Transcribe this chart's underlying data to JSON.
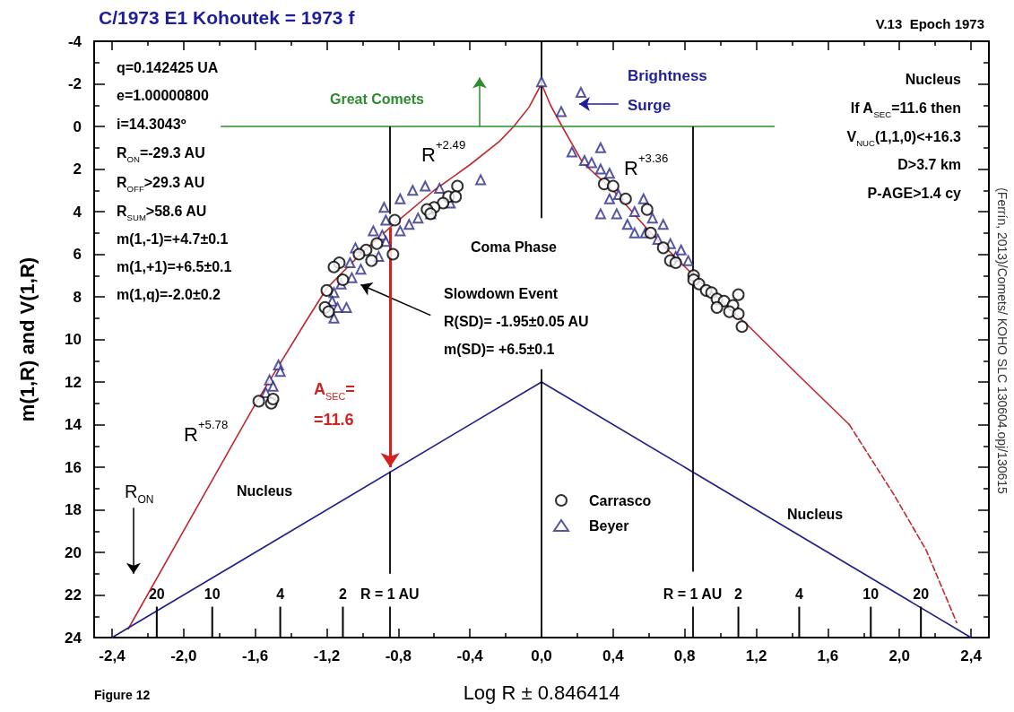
{
  "chart_data": {
    "type": "scatter",
    "title": "C/1973 E1 Kohoutek = 1973 f",
    "subtitle": "V.13  Epoch 1973",
    "xlabel": "Log R ± 0.846414",
    "ylabel": "m(1,R) and V(1,R)",
    "xlim": [
      -2.5,
      2.5
    ],
    "ylim": [
      24,
      -4
    ],
    "xticks": [
      {
        "value": -2.4,
        "label": "-2,4"
      },
      {
        "value": -2.0,
        "label": "-2,0"
      },
      {
        "value": -1.6,
        "label": "-1,6"
      },
      {
        "value": -1.2,
        "label": "-1,2"
      },
      {
        "value": -0.8,
        "label": "-0,8"
      },
      {
        "value": -0.4,
        "label": "-0,4"
      },
      {
        "value": 0,
        "label": "0,0"
      },
      {
        "value": 0.4,
        "label": "0,4"
      },
      {
        "value": 0.8,
        "label": "0,8"
      },
      {
        "value": 1.2,
        "label": "1,2"
      },
      {
        "value": 1.6,
        "label": "1,6"
      },
      {
        "value": 2.0,
        "label": "2,0"
      },
      {
        "value": 2.4,
        "label": "2,4"
      }
    ],
    "yticks": [
      -4,
      -2,
      0,
      2,
      4,
      6,
      8,
      10,
      12,
      14,
      16,
      18,
      20,
      22,
      24
    ],
    "grid": false,
    "legend": "bottom",
    "series": [
      {
        "name": "Carrasco",
        "marker": "circle",
        "color": "#000000",
        "x": [
          -0.47,
          -0.52,
          -0.55,
          -0.48,
          -0.6,
          -0.64,
          -0.62,
          -0.82,
          -0.83,
          -0.92,
          -0.95,
          -0.98,
          -1.02,
          -1.13,
          -1.16,
          -1.11,
          -1.2,
          -1.21,
          -1.19,
          -1.58,
          -1.51,
          -1.5,
          0.35,
          0.4,
          0.47,
          0.59,
          0.61,
          0.68,
          0.72,
          0.75,
          0.85,
          0.85,
          0.88,
          0.92,
          0.95,
          0.98,
          1.02,
          1.07,
          1.1,
          1.05,
          1.1,
          0.98,
          1.12
        ],
        "values": [
          2.8,
          3.3,
          3.6,
          3.3,
          3.8,
          3.9,
          4.1,
          4.4,
          6.0,
          5.5,
          6.3,
          5.8,
          6.0,
          6.4,
          6.6,
          7.2,
          7.7,
          8.5,
          8.7,
          12.9,
          13.0,
          12.8,
          2.7,
          2.8,
          3.4,
          3.9,
          5.0,
          5.7,
          6.3,
          6.4,
          7.0,
          7.2,
          7.4,
          7.7,
          7.8,
          8.1,
          8.2,
          8.4,
          7.9,
          8.7,
          8.8,
          8.5,
          9.4
        ]
      },
      {
        "name": "Beyer",
        "marker": "triangle",
        "color": "#2a2a8a",
        "x": [
          0,
          0.22,
          0.11,
          0.17,
          0.33,
          0.24,
          0.28,
          0.33,
          0.38,
          0.33,
          0.42,
          0.38,
          0.48,
          0.57,
          0.52,
          0.62,
          0.68,
          0.58,
          0.65,
          0.72,
          0.78,
          0.82,
          0.43,
          0.52,
          0.75,
          -0.34,
          -0.65,
          -0.72,
          -0.79,
          -0.88,
          -0.87,
          -0.94,
          -0.89,
          -0.79,
          -0.74,
          -0.69,
          -0.62,
          -0.57,
          -0.51,
          -1.04,
          -1.07,
          -1.01,
          -1.06,
          -1.12,
          -1.16,
          -1.17,
          -1.14,
          -1.09,
          -1.16,
          -0.91,
          -0.87,
          -1.47,
          -1.46,
          -1.52,
          -1.5,
          -1.54
        ],
        "values": [
          -2.1,
          -1.6,
          -0.7,
          1.2,
          1.0,
          1.6,
          1.7,
          2.0,
          2.2,
          4.1,
          4.1,
          3.4,
          4.6,
          3.4,
          4.0,
          4.3,
          4.6,
          5.0,
          5.3,
          5.5,
          5.8,
          6.3,
          3.2,
          5.0,
          6.1,
          2.5,
          2.8,
          3.0,
          3.4,
          3.8,
          4.4,
          4.9,
          5.1,
          4.9,
          4.6,
          4.3,
          4.1,
          2.9,
          3.6,
          5.7,
          6.4,
          6.7,
          7.1,
          7.4,
          7.8,
          8.2,
          8.5,
          8.5,
          9.0,
          6.1,
          5.4,
          11.2,
          11.5,
          11.9,
          12.2,
          12.5
        ]
      },
      {
        "type": "line",
        "marker": "none",
        "line_style": "solid",
        "color": "#c0282d",
        "x": [
          -2.31,
          -1.9,
          -1.59,
          -1.32,
          -1.2,
          -1.0,
          -0.84,
          -0.6,
          -0.4,
          -0.235,
          -0.155,
          -0.07,
          0,
          0.05,
          0.115,
          0.23,
          0.4,
          0.6,
          0.85,
          1.16,
          1.45,
          1.72
        ],
        "values": [
          23.6,
          17.5,
          12.9,
          9.2,
          7.6,
          5.9,
          4.7,
          3.0,
          1.8,
          0.7,
          0,
          -0.9,
          -2.0,
          -1.0,
          0,
          1.7,
          3.0,
          4.9,
          7.0,
          9.4,
          11.8,
          14.0
        ]
      },
      {
        "type": "line",
        "marker": "none",
        "line_style": "dashed",
        "color": "#c0282d",
        "x": [
          1.72,
          1.97,
          2.15,
          2.32
        ],
        "values": [
          14.0,
          17.3,
          19.9,
          23.3
        ]
      },
      {
        "type": "line",
        "marker": "none",
        "line_style": "solid",
        "color": "#1e1e8c",
        "x": [
          -2.4,
          0,
          2.4
        ],
        "values": [
          24,
          12,
          24
        ]
      },
      {
        "type": "line",
        "marker": "none",
        "line_style": "solid",
        "color": "#2e8b2e",
        "x": [
          -1.79,
          1.3
        ],
        "values": [
          0,
          0
        ]
      }
    ],
    "ref_lines": [
      {
        "axis": "x",
        "value": 0
      },
      {
        "axis": "x",
        "value": -0.846
      },
      {
        "axis": "x",
        "value": 0.846
      }
    ],
    "annotations": [
      "q=0.142425 UA",
      "e=1.00000800",
      "i=14.3043º",
      "R$_{ON}$=-29.3 AU",
      "R$_{OFF}$>29.3 AU",
      "R$_{SUM}$>58.6 AU",
      "m(1,-1)=+4.7±0.1",
      "m(1,+1)=+6.5±0.1",
      "m(1,q)=-2.0±0.2",
      "Great Comets",
      "Brightness\nSurge",
      "Nucleus",
      "If A$_{SEC}$=11.6 then",
      "V$_{NUC}$(1,1,0)<+16.3",
      "D>3.7 km",
      "P-AGE>1.4 cy",
      "R$^{+2.49}$",
      "R$^{+3.36}$",
      "R$^{+5.78}$",
      "Coma Phase",
      "Slowdown Event",
      "R(SD)= -1.95±0.05 AU",
      "m(SD)= +6.5±0.1",
      "A$_{SEC}$=\n=11.6",
      "R$_{ON}$",
      "Nucleus",
      "Nucleus",
      "Figure 12",
      "(Ferrín, 2013)/Comets/ KOHO SLC 130604.opj/130615",
      "20",
      "10",
      "4",
      "2",
      "R = 1 AU",
      "R = 1 AU",
      "2",
      "4",
      "10",
      "20"
    ]
  }
}
